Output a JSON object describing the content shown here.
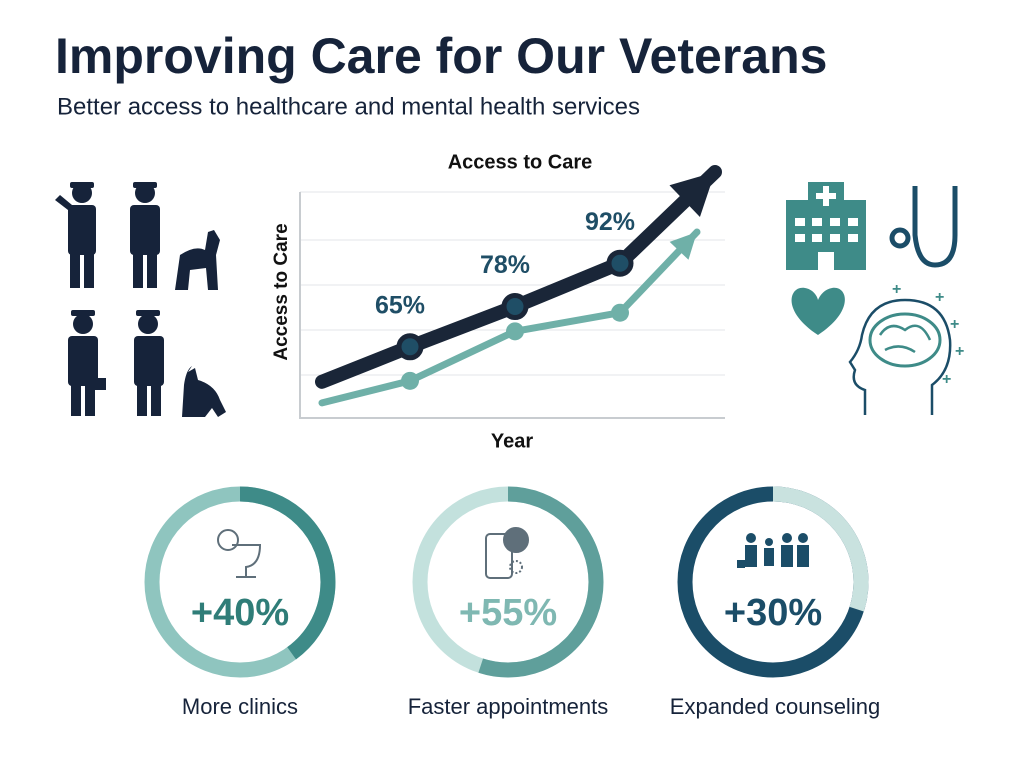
{
  "header": {
    "title": "Improving Care for Our Veterans",
    "subtitle": "Better access to healthcare and mental health services"
  },
  "chart_data": {
    "type": "line",
    "title": "Access to Care",
    "x_label": "Year",
    "y_label": "Access to Care",
    "categories": [
      null,
      null,
      null
    ],
    "series": [
      {
        "color": "#1a2638",
        "values": [
          65,
          78,
          92
        ],
        "value_labels": [
          "65%",
          "78%",
          "92%"
        ]
      },
      {
        "color": "#6fb0a8",
        "values": [
          54,
          70,
          76
        ]
      }
    ],
    "ylim": [
      42,
      115
    ],
    "grid": true
  },
  "stats": [
    {
      "value": 40,
      "label": "+40%",
      "caption": "More clinics",
      "track": "#8fc5bf",
      "arc": "#3e8b88",
      "text": "#2f7d78"
    },
    {
      "value": 55,
      "label": "+55%",
      "caption": "Faster appointments",
      "track": "#c3e1dd",
      "arc": "#5f9f9b",
      "text": "#7fb8b2"
    },
    {
      "value": 30,
      "label": "+30%",
      "caption": "Expanded counseling",
      "track": "#1b4d68",
      "arc": "#c9e2df",
      "text": "#1b4d68"
    }
  ]
}
